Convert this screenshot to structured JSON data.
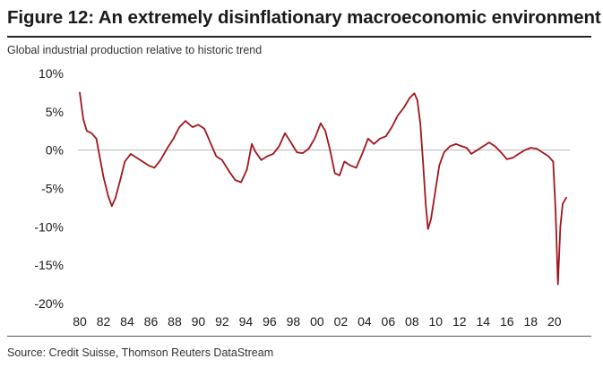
{
  "chart_data": {
    "type": "line",
    "title": "Figure 12: An extremely disinflationary macroeconomic environment",
    "subtitle": "Global industrial production relative to historic trend",
    "source": "Source: Credit Suisse, Thomson Reuters DataStream",
    "ylim": [
      -20,
      10
    ],
    "xlim": [
      1980,
      2021
    ],
    "y_ticks": [
      10,
      5,
      0,
      -5,
      -10,
      -15,
      -20
    ],
    "y_tick_labels": [
      "10%",
      "5%",
      "0%",
      "-5%",
      "-10%",
      "-15%",
      "-20%"
    ],
    "x_ticks": [
      1980,
      1982,
      1984,
      1986,
      1988,
      1990,
      1992,
      1994,
      1996,
      1998,
      2000,
      2002,
      2004,
      2006,
      2008,
      2010,
      2012,
      2014,
      2016,
      2018,
      2020
    ],
    "x_tick_labels": [
      "80",
      "82",
      "84",
      "86",
      "88",
      "90",
      "92",
      "94",
      "96",
      "98",
      "00",
      "02",
      "04",
      "06",
      "08",
      "10",
      "12",
      "14",
      "16",
      "18",
      "20"
    ],
    "zero_line": true,
    "series": [
      {
        "name": "Global industrial production relative to historic trend",
        "color": "#a0161c",
        "points": [
          [
            1980.0,
            7.5
          ],
          [
            1980.3,
            4.0
          ],
          [
            1980.6,
            2.5
          ],
          [
            1981.0,
            2.2
          ],
          [
            1981.4,
            1.5
          ],
          [
            1981.7,
            -1.0
          ],
          [
            1982.0,
            -3.5
          ],
          [
            1982.4,
            -6.0
          ],
          [
            1982.7,
            -7.3
          ],
          [
            1983.0,
            -6.3
          ],
          [
            1983.4,
            -4.0
          ],
          [
            1983.8,
            -1.5
          ],
          [
            1984.3,
            -0.5
          ],
          [
            1984.8,
            -1.0
          ],
          [
            1985.3,
            -1.5
          ],
          [
            1985.8,
            -2.0
          ],
          [
            1986.3,
            -2.3
          ],
          [
            1986.8,
            -1.3
          ],
          [
            1987.4,
            0.3
          ],
          [
            1987.9,
            1.5
          ],
          [
            1988.4,
            3.0
          ],
          [
            1988.9,
            3.8
          ],
          [
            1989.5,
            3.0
          ],
          [
            1990.0,
            3.3
          ],
          [
            1990.5,
            2.8
          ],
          [
            1991.0,
            1.0
          ],
          [
            1991.5,
            -0.8
          ],
          [
            1992.0,
            -1.3
          ],
          [
            1992.6,
            -2.8
          ],
          [
            1993.1,
            -3.9
          ],
          [
            1993.6,
            -4.2
          ],
          [
            1994.1,
            -2.5
          ],
          [
            1994.5,
            0.8
          ],
          [
            1994.8,
            -0.2
          ],
          [
            1995.3,
            -1.3
          ],
          [
            1995.8,
            -0.8
          ],
          [
            1996.3,
            -0.5
          ],
          [
            1996.8,
            0.5
          ],
          [
            1997.3,
            2.2
          ],
          [
            1997.8,
            1.0
          ],
          [
            1998.3,
            -0.3
          ],
          [
            1998.8,
            -0.4
          ],
          [
            1999.3,
            0.2
          ],
          [
            1999.8,
            1.5
          ],
          [
            2000.3,
            3.5
          ],
          [
            2000.7,
            2.5
          ],
          [
            2001.1,
            0.0
          ],
          [
            2001.5,
            -3.0
          ],
          [
            2001.9,
            -3.3
          ],
          [
            2002.3,
            -1.5
          ],
          [
            2002.8,
            -2.0
          ],
          [
            2003.3,
            -2.3
          ],
          [
            2003.8,
            -0.5
          ],
          [
            2004.3,
            1.5
          ],
          [
            2004.8,
            0.8
          ],
          [
            2005.3,
            1.5
          ],
          [
            2005.8,
            1.8
          ],
          [
            2006.3,
            3.0
          ],
          [
            2006.8,
            4.5
          ],
          [
            2007.3,
            5.5
          ],
          [
            2007.8,
            6.8
          ],
          [
            2008.2,
            7.4
          ],
          [
            2008.45,
            6.5
          ],
          [
            2008.7,
            3.5
          ],
          [
            2008.95,
            -2.0
          ],
          [
            2009.15,
            -7.0
          ],
          [
            2009.35,
            -10.3
          ],
          [
            2009.6,
            -9.0
          ],
          [
            2009.9,
            -6.0
          ],
          [
            2010.3,
            -2.0
          ],
          [
            2010.7,
            -0.3
          ],
          [
            2011.2,
            0.5
          ],
          [
            2011.7,
            0.8
          ],
          [
            2012.2,
            0.5
          ],
          [
            2012.6,
            0.3
          ],
          [
            2013.0,
            -0.5
          ],
          [
            2013.5,
            0.0
          ],
          [
            2014.0,
            0.5
          ],
          [
            2014.5,
            1.0
          ],
          [
            2015.0,
            0.5
          ],
          [
            2015.5,
            -0.3
          ],
          [
            2016.0,
            -1.2
          ],
          [
            2016.5,
            -1.0
          ],
          [
            2017.0,
            -0.5
          ],
          [
            2017.5,
            0.0
          ],
          [
            2018.0,
            0.3
          ],
          [
            2018.5,
            0.2
          ],
          [
            2019.0,
            -0.3
          ],
          [
            2019.5,
            -0.8
          ],
          [
            2019.9,
            -1.5
          ],
          [
            2020.1,
            -8.0
          ],
          [
            2020.3,
            -17.5
          ],
          [
            2020.5,
            -10.0
          ],
          [
            2020.7,
            -7.0
          ],
          [
            2021.0,
            -6.2
          ]
        ]
      }
    ]
  }
}
